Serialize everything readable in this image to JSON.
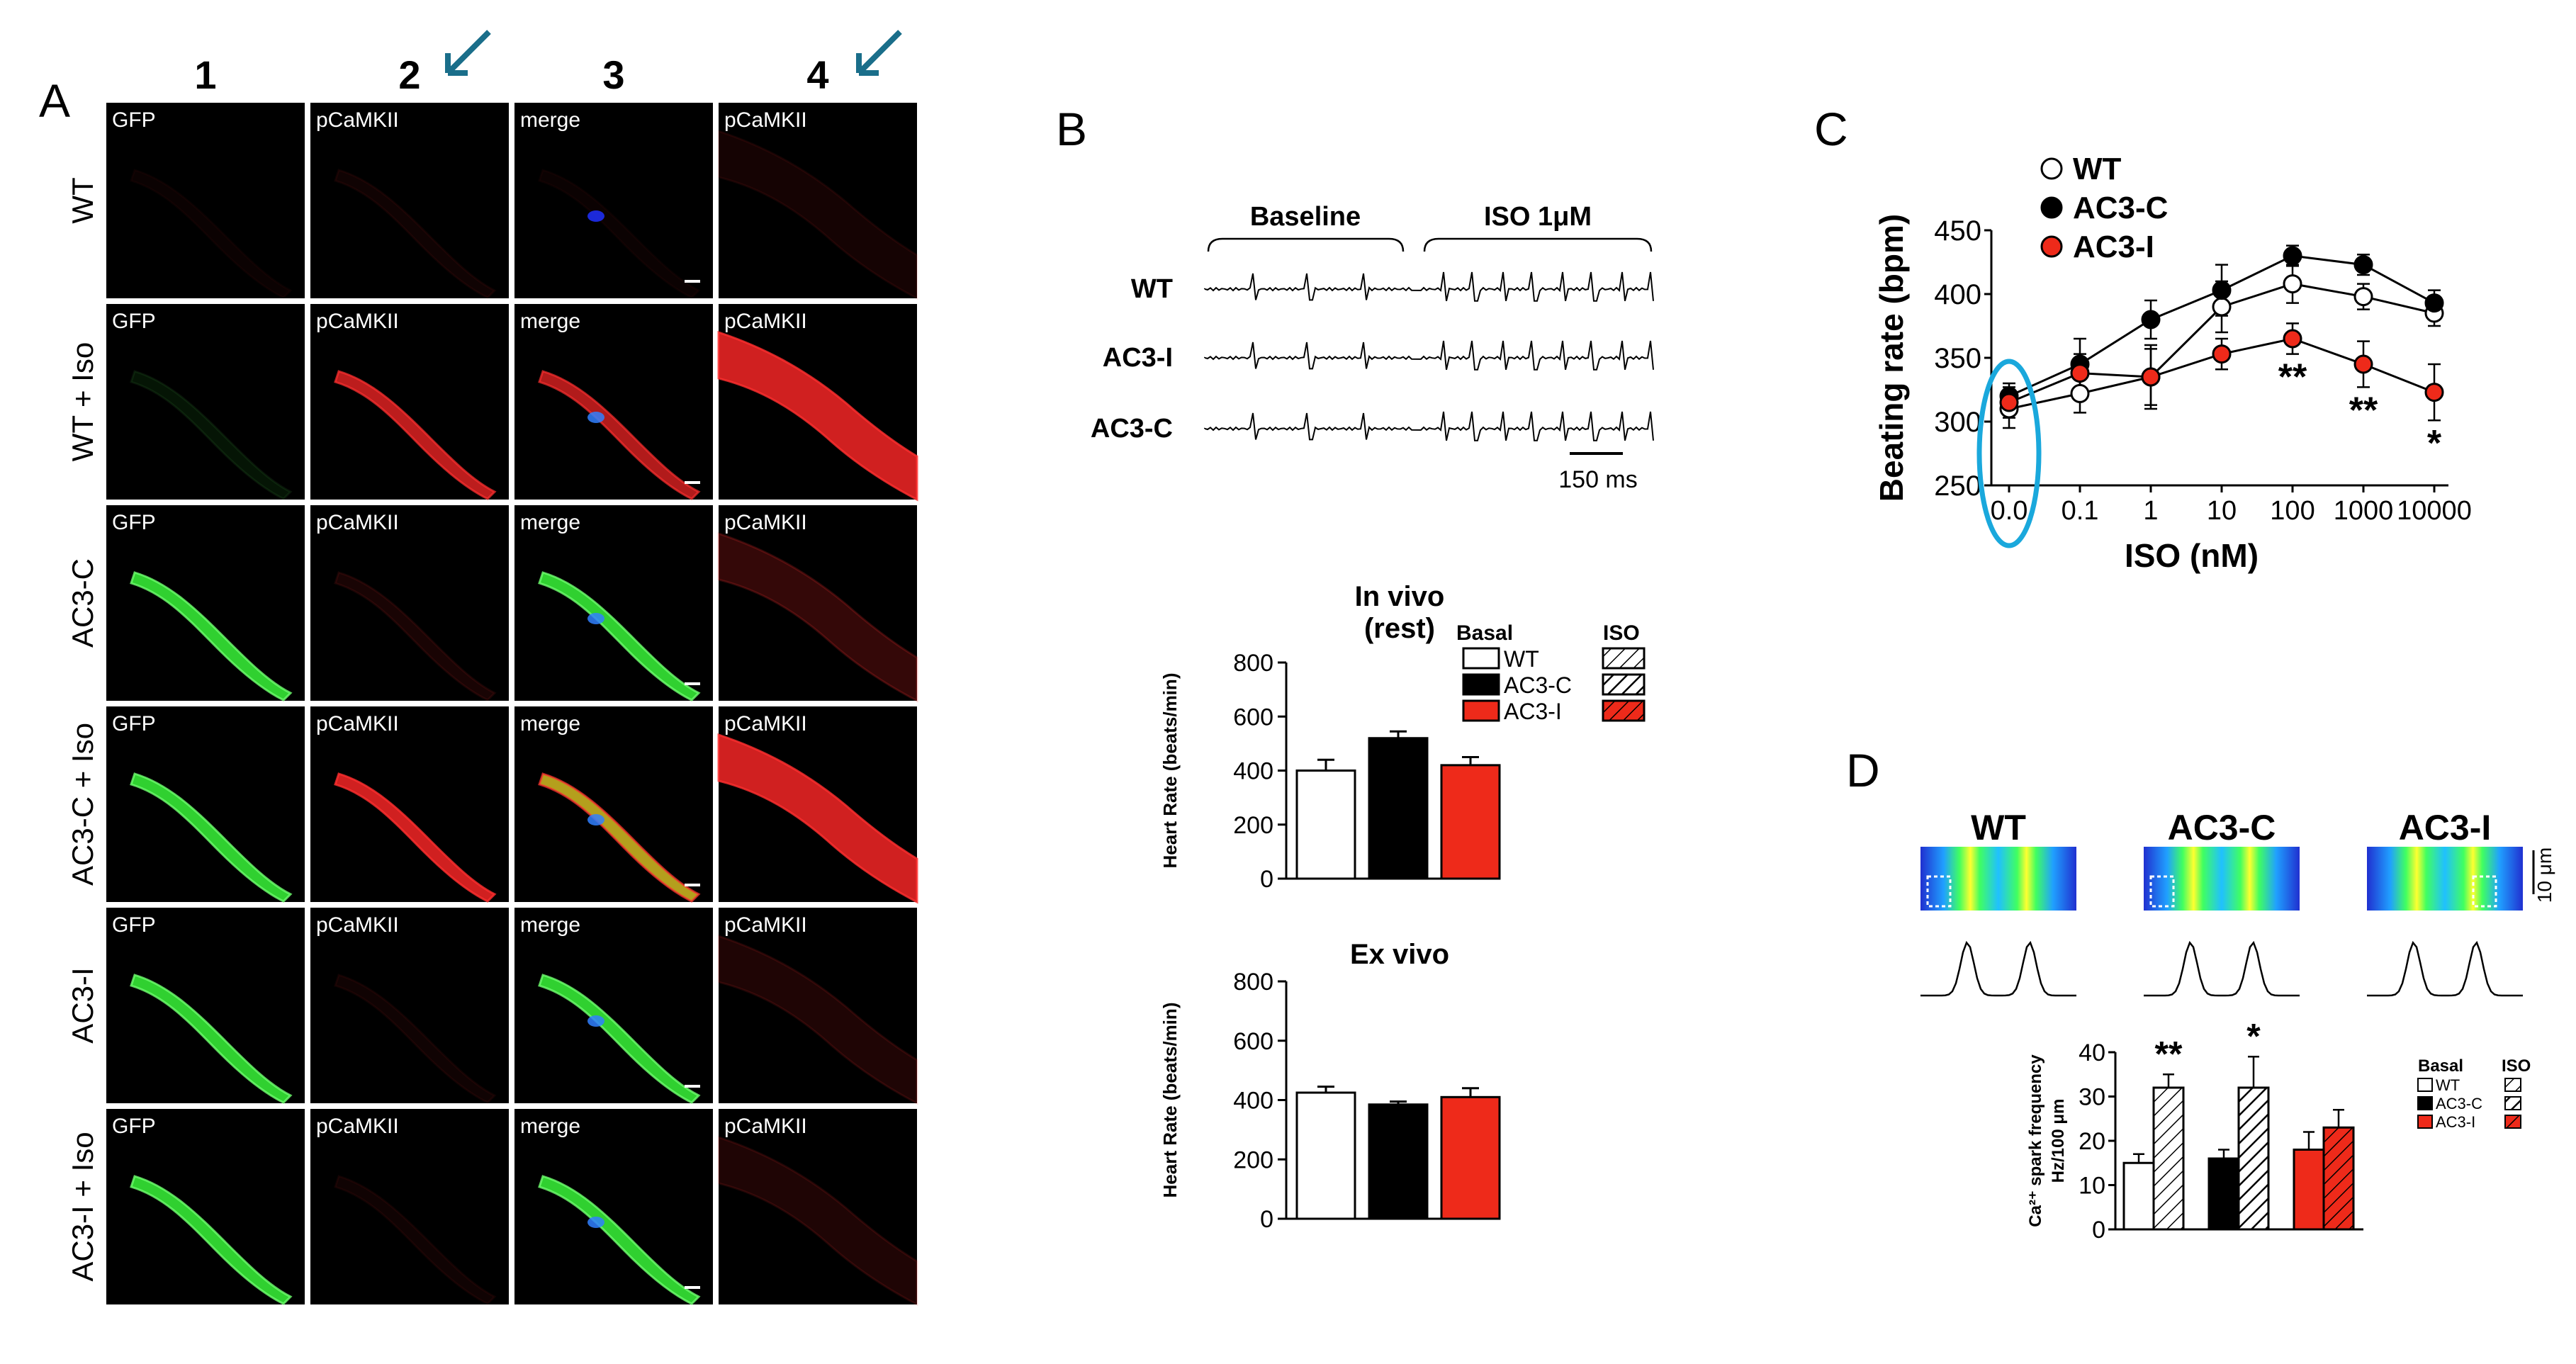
{
  "panelA": {
    "letter": "A",
    "col_numbers": [
      "1",
      "2",
      "3",
      "4"
    ],
    "row_labels": [
      "WT",
      "WT + Iso",
      "AC3-C",
      "AC3-C + Iso",
      "AC3-I",
      "AC3-I + Iso"
    ],
    "channel_labels": [
      "GFP",
      "pCaMKII",
      "merge",
      "pCaMKII"
    ],
    "cells": [
      [
        {
          "green": 0,
          "red": 0.05,
          "blue": true
        },
        {
          "green": 0,
          "red": 0.08,
          "blue": false
        },
        {
          "green": 0,
          "red": 0.05,
          "blue": true
        },
        {
          "green": 0,
          "red": 0.1,
          "blue": false
        }
      ],
      [
        {
          "green": 0.1,
          "red": 0,
          "blue": false
        },
        {
          "green": 0,
          "red": 0.9,
          "blue": false
        },
        {
          "green": 0,
          "red": 0.85,
          "blue": true
        },
        {
          "green": 0,
          "red": 1,
          "blue": false
        }
      ],
      [
        {
          "green": 1,
          "red": 0,
          "blue": false
        },
        {
          "green": 0,
          "red": 0.12,
          "blue": false
        },
        {
          "green": 1,
          "red": 0,
          "blue": true
        },
        {
          "green": 0,
          "red": 0.25,
          "blue": false
        }
      ],
      [
        {
          "green": 1,
          "red": 0,
          "blue": false
        },
        {
          "green": 0,
          "red": 1,
          "blue": false
        },
        {
          "green": 0.9,
          "red": 0.9,
          "blue": true
        },
        {
          "green": 0,
          "red": 1,
          "blue": false
        }
      ],
      [
        {
          "green": 1,
          "red": 0,
          "blue": false
        },
        {
          "green": 0,
          "red": 0.08,
          "blue": false
        },
        {
          "green": 1,
          "red": 0,
          "blue": true
        },
        {
          "green": 0,
          "red": 0.15,
          "blue": false
        }
      ],
      [
        {
          "green": 1,
          "red": 0,
          "blue": false
        },
        {
          "green": 0,
          "red": 0.08,
          "blue": false
        },
        {
          "green": 1,
          "red": 0,
          "blue": true
        },
        {
          "green": 0,
          "red": 0.15,
          "blue": false
        }
      ]
    ],
    "arrow_color": "#1a6e8a"
  },
  "panelB": {
    "letter": "B",
    "ecg": {
      "baseline_label": "Baseline",
      "iso_label": "ISO 1μM",
      "traces": [
        "WT",
        "AC3-I",
        "AC3-C"
      ],
      "scalebar_label": "150 ms"
    },
    "chart_data": [
      {
        "type": "bar",
        "title": "In vivo",
        "subtitle": "(rest)",
        "ylabel": "Heart Rate (beats/min)",
        "ylim": [
          0,
          800
        ],
        "yticks": [
          "0",
          "200",
          "400",
          "600",
          "800"
        ],
        "categories": [
          "WT",
          "AC3-C",
          "AC3-I"
        ],
        "values": [
          400,
          520,
          420
        ],
        "errors": [
          40,
          25,
          30
        ],
        "colors": [
          "#ffffff",
          "#000000",
          "#ee2a1a"
        ],
        "legend": {
          "basal": "Basal",
          "iso": "ISO",
          "entries": [
            "WT",
            "AC3-C",
            "AC3-I"
          ]
        }
      },
      {
        "type": "bar",
        "title": "Ex vivo",
        "ylabel": "Heart Rate (beats/min)",
        "ylim": [
          0,
          800
        ],
        "yticks": [
          "0",
          "200",
          "400",
          "600",
          "800"
        ],
        "categories": [
          "WT",
          "AC3-C",
          "AC3-I"
        ],
        "values": [
          425,
          385,
          410
        ],
        "errors": [
          20,
          10,
          30
        ],
        "colors": [
          "#ffffff",
          "#000000",
          "#ee2a1a"
        ]
      }
    ]
  },
  "panelC": {
    "letter": "C",
    "chart_data": {
      "type": "line",
      "xlabel": "ISO (nM)",
      "ylabel": "Beating rate (bpm)",
      "xticks": [
        "0.0",
        "0.1",
        "1",
        "10",
        "100",
        "1000",
        "10000"
      ],
      "ylim": [
        250,
        450
      ],
      "yticks": [
        "250",
        "300",
        "350",
        "400",
        "450"
      ],
      "series": [
        {
          "name": "WT",
          "marker": "open",
          "values": [
            310,
            322,
            335,
            390,
            408,
            398,
            385
          ],
          "errors": [
            15,
            15,
            22,
            20,
            15,
            10,
            10
          ]
        },
        {
          "name": "AC3-C",
          "marker": "black",
          "values": [
            320,
            345,
            380,
            403,
            430,
            423,
            393
          ],
          "errors": [
            10,
            20,
            15,
            20,
            8,
            8,
            10
          ]
        },
        {
          "name": "AC3-I",
          "marker": "red",
          "values": [
            315,
            338,
            335,
            353,
            365,
            345,
            323
          ],
          "errors": [
            12,
            15,
            25,
            12,
            12,
            18,
            22
          ]
        }
      ],
      "annotations": [
        {
          "x_index": 4,
          "text": "**"
        },
        {
          "x_index": 5,
          "text": "**"
        },
        {
          "x_index": 6,
          "text": "*"
        }
      ],
      "highlight_color": "#1aa8dc"
    }
  },
  "panelD": {
    "letter": "D",
    "images": [
      "WT",
      "AC3-C",
      "AC3-I"
    ],
    "scalebar_label": "10 μm",
    "chart_data": {
      "type": "bar",
      "ylabel_line1": "Ca²⁺ spark frequency",
      "ylabel_line2": "Hz/100 μm",
      "ylim": [
        0,
        40
      ],
      "yticks": [
        "0",
        "10",
        "20",
        "30",
        "40"
      ],
      "categories": [
        "WT",
        "AC3-C",
        "AC3-I"
      ],
      "series": [
        {
          "name": "Basal",
          "values": [
            15,
            16,
            18
          ],
          "errors": [
            2,
            2,
            4
          ]
        },
        {
          "name": "ISO",
          "values": [
            32,
            32,
            23
          ],
          "errors": [
            3,
            7,
            4
          ]
        }
      ],
      "colors": [
        "#ffffff",
        "#000000",
        "#ee2a1a"
      ],
      "annotations": [
        {
          "category_index": 0,
          "text": "**"
        },
        {
          "category_index": 1,
          "text": "*"
        }
      ],
      "legend": {
        "basal": "Basal",
        "iso": "ISO",
        "entries": [
          "WT",
          "AC3-C",
          "AC3-I"
        ]
      }
    }
  }
}
